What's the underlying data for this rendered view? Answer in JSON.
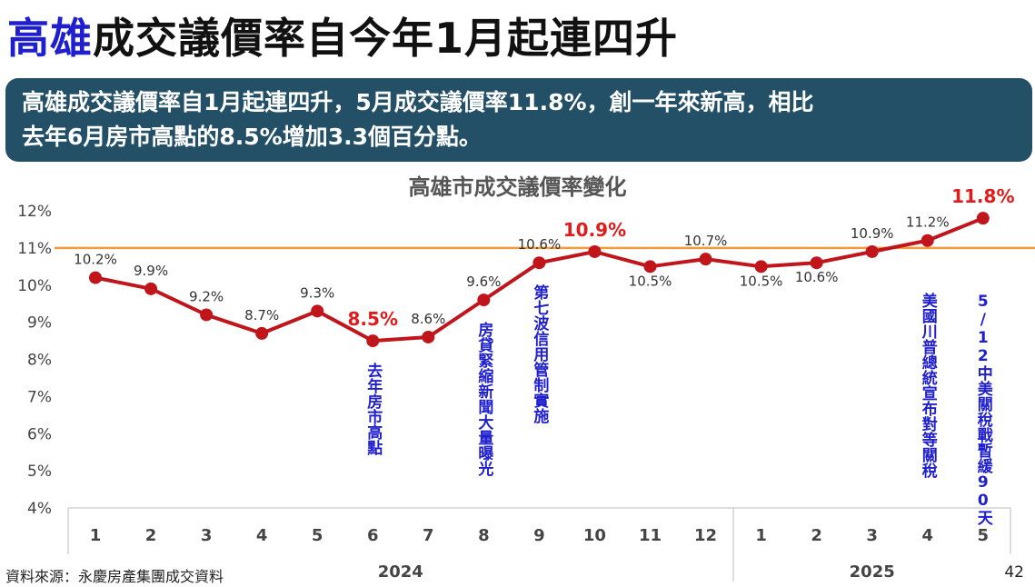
{
  "header": {
    "title_highlight": "高雄",
    "title_rest": "成交議價率自今年1月起連四升",
    "summary_line1": "高雄成交議價率自1月起連四升，5月成交議價率11.8%，創一年來新高，相比",
    "summary_line2": "去年6月房市高點的8.5%增加3.3個百分點。"
  },
  "footer": {
    "source": "資料來源：永慶房產集團成交資料",
    "page_number": "42"
  },
  "colors": {
    "line": "#c0151b",
    "marker": "#c0151b",
    "reference_line": "#f39a3d",
    "highlight_label": "#e11b1b",
    "annotation": "#1f1fd0",
    "banner": "#235067",
    "title_highlight": "#1f1fd0"
  },
  "chart_data": {
    "type": "line",
    "title": "高雄市成交議價率變化",
    "categories": [
      "1",
      "2",
      "3",
      "4",
      "5",
      "6",
      "7",
      "8",
      "9",
      "10",
      "11",
      "12",
      "1",
      "2",
      "3",
      "4",
      "5"
    ],
    "groups": [
      {
        "label": "2024",
        "months": 12
      },
      {
        "label": "2025",
        "months": 5
      }
    ],
    "series": [
      {
        "values": [
          10.2,
          9.9,
          9.2,
          8.7,
          9.3,
          8.5,
          8.6,
          9.6,
          10.6,
          10.9,
          10.5,
          10.7,
          10.5,
          10.6,
          10.9,
          11.2,
          11.8
        ]
      }
    ],
    "data_labels": [
      "10.2%",
      "9.9%",
      "9.2%",
      "8.7%",
      "9.3%",
      "8.5%",
      "8.6%",
      "9.6%",
      "10.6%",
      "10.9%",
      "10.5%",
      "10.7%",
      "10.5%",
      "10.6%",
      "10.9%",
      "11.2%",
      "11.8%"
    ],
    "highlighted_indices": [
      5,
      9,
      16
    ],
    "label_below_indices": [
      10,
      12,
      13
    ],
    "y_ticks": [
      "4%",
      "5%",
      "6%",
      "7%",
      "8%",
      "9%",
      "10%",
      "11%",
      "12%"
    ],
    "ylim": [
      4,
      12.2
    ],
    "reference_line": 11,
    "annotations": [
      {
        "index": 5,
        "text": "去年房市高點"
      },
      {
        "index": 7,
        "text": "房貸緊縮新聞大量曝光"
      },
      {
        "index": 8,
        "text": "第七波信用管制實施"
      },
      {
        "index": 15,
        "text": "美國川普總統宣布對等關稅"
      },
      {
        "index": 16,
        "text": "5/12中美關稅戰暫緩90天"
      }
    ],
    "grid": false,
    "legend": "none"
  }
}
